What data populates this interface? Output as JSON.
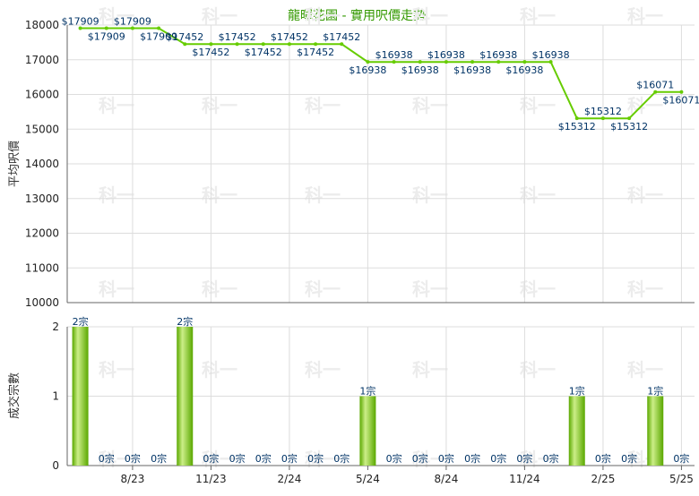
{
  "chart_data": [
    {
      "type": "line",
      "title": "龍暉花園 - 實用呎價走勢",
      "ylabel": "平均呎價",
      "ylim": [
        10000,
        18000
      ],
      "yticks": [
        10000,
        11000,
        12000,
        13000,
        14000,
        15000,
        16000,
        17000,
        18000
      ],
      "grid": true,
      "values": [
        17909,
        17909,
        17909,
        17909,
        17452,
        17452,
        17452,
        17452,
        17452,
        17452,
        17452,
        16938,
        16938,
        16938,
        16938,
        16938,
        16938,
        16938,
        16938,
        15312,
        15312,
        15312,
        16071,
        16071
      ],
      "labels": [
        "$17909",
        "$17909",
        "$17909",
        "$17909",
        "$17452",
        "$17452",
        "$17452",
        "$17452",
        "$17452",
        "$17452",
        "$17452",
        "$16938",
        "$16938",
        "$16938",
        "$16938",
        "$16938",
        "$16938",
        "$16938",
        "$16938",
        "$15312",
        "$15312",
        "$15312",
        "$16071",
        "$16071"
      ]
    },
    {
      "type": "bar",
      "ylabel": "成交宗數",
      "ylim": [
        0,
        2
      ],
      "yticks": [
        0,
        1,
        2
      ],
      "values": [
        2,
        0,
        0,
        0,
        2,
        0,
        0,
        0,
        0,
        0,
        0,
        1,
        0,
        0,
        0,
        0,
        0,
        0,
        0,
        1,
        0,
        0,
        1,
        0
      ],
      "labels": [
        "2宗",
        "0宗",
        "0宗",
        "0宗",
        "2宗",
        "0宗",
        "0宗",
        "0宗",
        "0宗",
        "0宗",
        "0宗",
        "1宗",
        "0宗",
        "0宗",
        "0宗",
        "0宗",
        "0宗",
        "0宗",
        "0宗",
        "1宗",
        "0宗",
        "0宗",
        "1宗",
        "0宗"
      ],
      "x_ticks": [
        {
          "index": 2,
          "label": "8/23"
        },
        {
          "index": 5,
          "label": "11/23"
        },
        {
          "index": 8,
          "label": "2/24"
        },
        {
          "index": 11,
          "label": "5/24"
        },
        {
          "index": 14,
          "label": "8/24"
        },
        {
          "index": 17,
          "label": "11/24"
        },
        {
          "index": 20,
          "label": "2/25"
        },
        {
          "index": 23,
          "label": "5/25"
        }
      ]
    }
  ],
  "colors": {
    "title": "#339900",
    "line": "#66cc00",
    "point": "#66cc00",
    "bar_light": "#ccee88",
    "bar_dark": "#5aa800",
    "grid": "#dddddd",
    "axis": "#666666",
    "label": "#003366",
    "watermark": "#ececec"
  },
  "watermark": "科一"
}
